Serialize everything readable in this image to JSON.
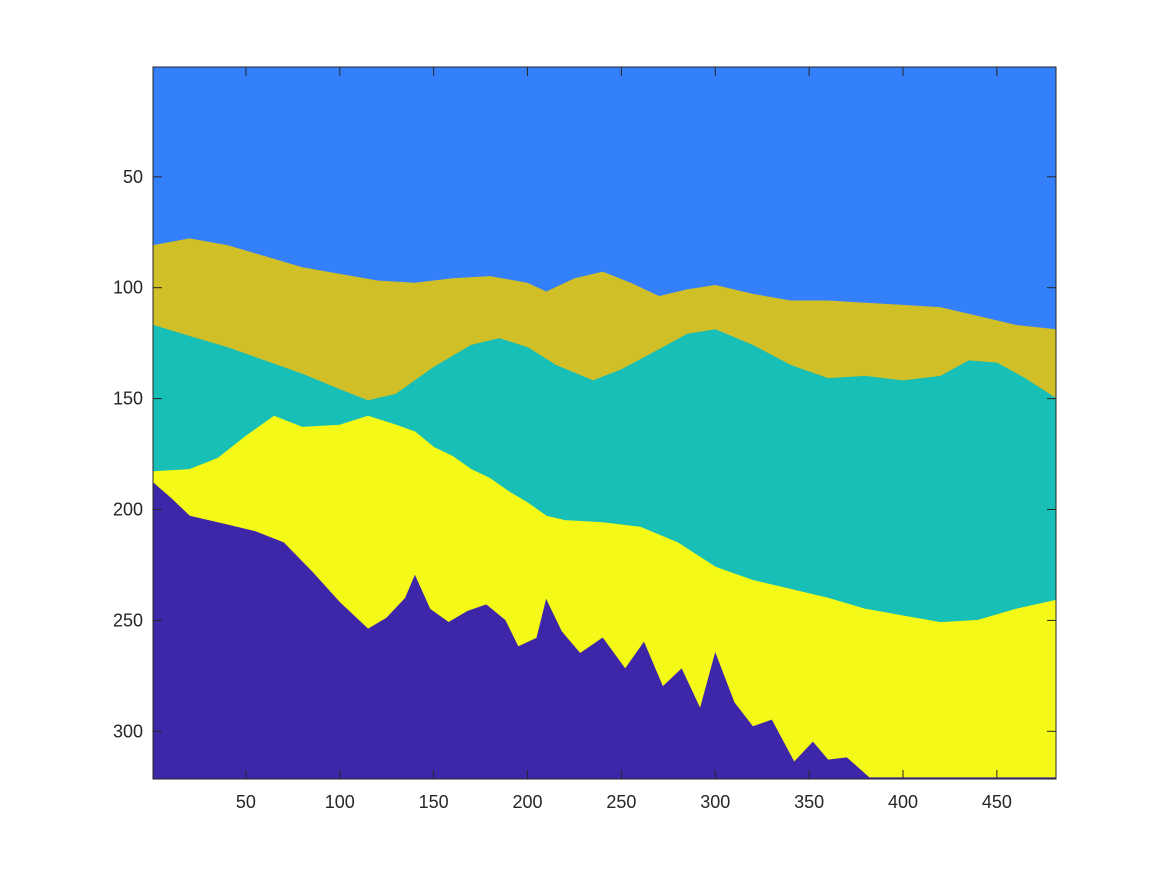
{
  "chart_data": {
    "type": "heatmap",
    "title": "",
    "xlabel": "",
    "ylabel": "",
    "xlim": [
      0.5,
      481.5
    ],
    "ylim": [
      0.5,
      321.5
    ],
    "y_direction": "reversed",
    "grid": false,
    "legend": "none",
    "x_ticks": [
      50,
      100,
      150,
      200,
      250,
      300,
      350,
      400,
      450
    ],
    "y_ticks": [
      50,
      100,
      150,
      200,
      250,
      300
    ],
    "x_tick_labels": [
      "50",
      "100",
      "150",
      "200",
      "250",
      "300",
      "350",
      "400",
      "450"
    ],
    "y_tick_labels": [
      "50",
      "100",
      "150",
      "200",
      "250",
      "300"
    ],
    "colors": {
      "class_1": "#3e26a8",
      "class_2": "#347ffa",
      "class_3": "#17bfb6",
      "class_4": "#d1bf28",
      "class_5": "#f5f918"
    },
    "regions": [
      {
        "class": "class_2",
        "top_boundary": [
          [
            1,
            1
          ],
          [
            481,
            1
          ]
        ],
        "bottom_boundary": [
          [
            1,
            81
          ],
          [
            20,
            78
          ],
          [
            40,
            81
          ],
          [
            60,
            86
          ],
          [
            80,
            91
          ],
          [
            100,
            94
          ],
          [
            120,
            97
          ],
          [
            140,
            98
          ],
          [
            160,
            96
          ],
          [
            180,
            95
          ],
          [
            200,
            98
          ],
          [
            210,
            102
          ],
          [
            225,
            96
          ],
          [
            240,
            93
          ],
          [
            255,
            98
          ],
          [
            270,
            104
          ],
          [
            285,
            101
          ],
          [
            300,
            99
          ],
          [
            320,
            103
          ],
          [
            340,
            106
          ],
          [
            360,
            106
          ],
          [
            380,
            107
          ],
          [
            400,
            108
          ],
          [
            420,
            109
          ],
          [
            440,
            113
          ],
          [
            460,
            117
          ],
          [
            481,
            119
          ]
        ]
      },
      {
        "class": "class_4",
        "top_boundary": [
          [
            1,
            81
          ],
          [
            20,
            78
          ],
          [
            40,
            81
          ],
          [
            60,
            86
          ],
          [
            80,
            91
          ],
          [
            100,
            94
          ],
          [
            120,
            97
          ],
          [
            140,
            98
          ],
          [
            160,
            96
          ],
          [
            180,
            95
          ],
          [
            200,
            98
          ],
          [
            210,
            102
          ],
          [
            225,
            96
          ],
          [
            240,
            93
          ],
          [
            255,
            98
          ],
          [
            270,
            104
          ],
          [
            285,
            101
          ],
          [
            300,
            99
          ],
          [
            320,
            103
          ],
          [
            340,
            106
          ],
          [
            360,
            106
          ],
          [
            380,
            107
          ],
          [
            400,
            108
          ],
          [
            420,
            109
          ],
          [
            440,
            113
          ],
          [
            460,
            117
          ],
          [
            481,
            119
          ]
        ],
        "bottom_boundary": [
          [
            1,
            117
          ],
          [
            20,
            122
          ],
          [
            40,
            127
          ],
          [
            60,
            133
          ],
          [
            80,
            139
          ],
          [
            100,
            146
          ],
          [
            115,
            151
          ],
          [
            130,
            148
          ],
          [
            150,
            136
          ],
          [
            170,
            126
          ],
          [
            185,
            123
          ],
          [
            200,
            127
          ],
          [
            215,
            135
          ],
          [
            235,
            142
          ],
          [
            250,
            137
          ],
          [
            270,
            128
          ],
          [
            285,
            121
          ],
          [
            300,
            119
          ],
          [
            320,
            126
          ],
          [
            340,
            135
          ],
          [
            360,
            141
          ],
          [
            380,
            140
          ],
          [
            400,
            142
          ],
          [
            420,
            140
          ],
          [
            435,
            133
          ],
          [
            450,
            134
          ],
          [
            465,
            141
          ],
          [
            481,
            150
          ]
        ]
      },
      {
        "class": "class_3",
        "top_boundary": [
          [
            1,
            117
          ],
          [
            20,
            122
          ],
          [
            40,
            127
          ],
          [
            60,
            133
          ],
          [
            80,
            139
          ],
          [
            100,
            146
          ],
          [
            115,
            151
          ],
          [
            130,
            148
          ],
          [
            150,
            136
          ],
          [
            170,
            126
          ],
          [
            185,
            123
          ],
          [
            200,
            127
          ],
          [
            215,
            135
          ],
          [
            235,
            142
          ],
          [
            250,
            137
          ],
          [
            270,
            128
          ],
          [
            285,
            121
          ],
          [
            300,
            119
          ],
          [
            320,
            126
          ],
          [
            340,
            135
          ],
          [
            360,
            141
          ],
          [
            380,
            140
          ],
          [
            400,
            142
          ],
          [
            420,
            140
          ],
          [
            435,
            133
          ],
          [
            450,
            134
          ],
          [
            465,
            141
          ],
          [
            481,
            150
          ]
        ],
        "bottom_boundary": [
          [
            1,
            183
          ],
          [
            20,
            182
          ],
          [
            35,
            177
          ],
          [
            50,
            167
          ],
          [
            65,
            158
          ],
          [
            80,
            163
          ],
          [
            100,
            162
          ],
          [
            115,
            158
          ],
          [
            130,
            162
          ],
          [
            140,
            165
          ],
          [
            150,
            172
          ],
          [
            160,
            176
          ],
          [
            170,
            182
          ],
          [
            180,
            186
          ],
          [
            190,
            192
          ],
          [
            200,
            197
          ],
          [
            210,
            203
          ],
          [
            220,
            205
          ],
          [
            240,
            206
          ],
          [
            260,
            208
          ],
          [
            280,
            215
          ],
          [
            300,
            226
          ],
          [
            320,
            232
          ],
          [
            340,
            236
          ],
          [
            360,
            240
          ],
          [
            380,
            245
          ],
          [
            400,
            248
          ],
          [
            420,
            251
          ],
          [
            440,
            250
          ],
          [
            460,
            245
          ],
          [
            481,
            241
          ]
        ]
      },
      {
        "class": "class_5",
        "top_boundary": [
          [
            1,
            183
          ],
          [
            20,
            182
          ],
          [
            35,
            177
          ],
          [
            50,
            167
          ],
          [
            65,
            158
          ],
          [
            80,
            163
          ],
          [
            100,
            162
          ],
          [
            115,
            158
          ],
          [
            130,
            162
          ],
          [
            140,
            165
          ],
          [
            150,
            172
          ],
          [
            160,
            176
          ],
          [
            170,
            182
          ],
          [
            180,
            186
          ],
          [
            190,
            192
          ],
          [
            200,
            197
          ],
          [
            210,
            203
          ],
          [
            220,
            205
          ],
          [
            240,
            206
          ],
          [
            260,
            208
          ],
          [
            280,
            215
          ],
          [
            300,
            226
          ],
          [
            320,
            232
          ],
          [
            340,
            236
          ],
          [
            360,
            240
          ],
          [
            380,
            245
          ],
          [
            400,
            248
          ],
          [
            420,
            251
          ],
          [
            440,
            250
          ],
          [
            460,
            245
          ],
          [
            481,
            241
          ]
        ],
        "bottom_boundary": [
          [
            1,
            188
          ],
          [
            10,
            195
          ],
          [
            20,
            203
          ],
          [
            40,
            207
          ],
          [
            55,
            210
          ],
          [
            70,
            215
          ],
          [
            85,
            228
          ],
          [
            100,
            242
          ],
          [
            115,
            254
          ],
          [
            125,
            249
          ],
          [
            135,
            240
          ],
          [
            140,
            230
          ],
          [
            148,
            245
          ],
          [
            158,
            251
          ],
          [
            168,
            246
          ],
          [
            178,
            243
          ],
          [
            188,
            250
          ],
          [
            195,
            262
          ],
          [
            205,
            258
          ],
          [
            210,
            241
          ],
          [
            218,
            255
          ],
          [
            228,
            265
          ],
          [
            240,
            258
          ],
          [
            252,
            272
          ],
          [
            262,
            260
          ],
          [
            272,
            280
          ],
          [
            282,
            272
          ],
          [
            292,
            290
          ],
          [
            300,
            265
          ],
          [
            310,
            287
          ],
          [
            320,
            298
          ],
          [
            330,
            295
          ],
          [
            342,
            314
          ],
          [
            352,
            305
          ],
          [
            360,
            313
          ],
          [
            370,
            312
          ],
          [
            382,
            321
          ],
          [
            400,
            321
          ],
          [
            420,
            321
          ],
          [
            440,
            321
          ],
          [
            460,
            321
          ],
          [
            481,
            321
          ]
        ]
      },
      {
        "class": "class_1",
        "top_boundary": [
          [
            1,
            188
          ],
          [
            10,
            195
          ],
          [
            20,
            203
          ],
          [
            40,
            207
          ],
          [
            55,
            210
          ],
          [
            70,
            215
          ],
          [
            85,
            228
          ],
          [
            100,
            242
          ],
          [
            115,
            254
          ],
          [
            125,
            249
          ],
          [
            135,
            240
          ],
          [
            140,
            230
          ],
          [
            148,
            245
          ],
          [
            158,
            251
          ],
          [
            168,
            246
          ],
          [
            178,
            243
          ],
          [
            188,
            250
          ],
          [
            195,
            262
          ],
          [
            205,
            258
          ],
          [
            210,
            241
          ],
          [
            218,
            255
          ],
          [
            228,
            265
          ],
          [
            240,
            258
          ],
          [
            252,
            272
          ],
          [
            262,
            260
          ],
          [
            272,
            280
          ],
          [
            282,
            272
          ],
          [
            292,
            290
          ],
          [
            300,
            265
          ],
          [
            310,
            287
          ],
          [
            320,
            298
          ],
          [
            330,
            295
          ],
          [
            342,
            314
          ],
          [
            352,
            305
          ],
          [
            360,
            313
          ],
          [
            370,
            312
          ],
          [
            382,
            321
          ],
          [
            400,
            321
          ],
          [
            420,
            321
          ],
          [
            440,
            321
          ],
          [
            460,
            321
          ],
          [
            481,
            321
          ]
        ],
        "bottom_boundary": [
          [
            1,
            321
          ],
          [
            481,
            321
          ]
        ]
      }
    ]
  }
}
